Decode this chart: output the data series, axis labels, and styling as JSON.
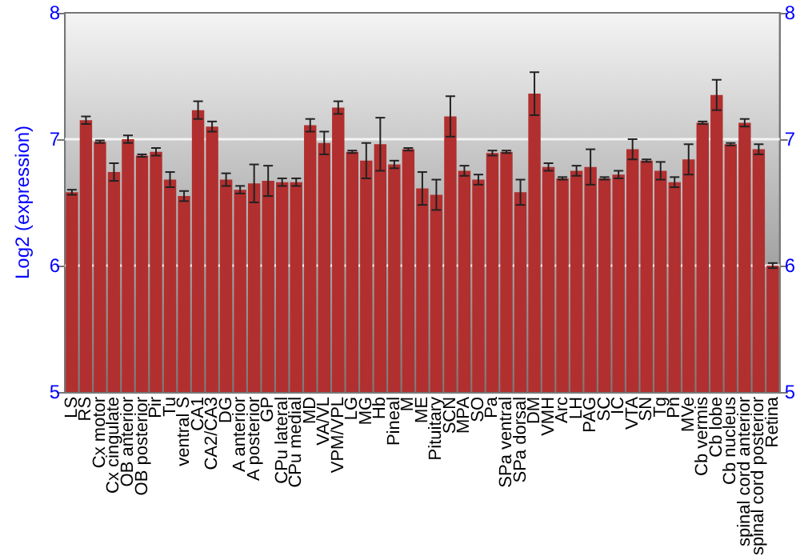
{
  "chart_data": {
    "type": "bar",
    "ylabel": "Log2 (expression)",
    "categories": [
      "LS",
      "RS",
      "Cx motor",
      "Cx cingulate",
      "OB anterior",
      "OB posterior",
      "Pir",
      "Tu",
      "ventral S",
      "CA1",
      "CA2/CA3",
      "DG",
      "A anterior",
      "A posterior",
      "GP",
      "CPu lateral",
      "CPu medial",
      "MD",
      "VA/VL",
      "VPM/VPL",
      "LG",
      "MG",
      "Hb",
      "Pineal",
      "M",
      "ME",
      "Pituitary",
      "SCN",
      "MPA",
      "SO",
      "Pa",
      "SPa ventral",
      "SPa dorsal",
      "DM",
      "VMH",
      "Arc",
      "LH",
      "PAG",
      "SC",
      "IC",
      "VTA",
      "SN",
      "Tg",
      "Pn",
      "MVe",
      "Cb vermis",
      "Cb lobe",
      "Cb nucleus",
      "spinal cord anterior",
      "spinal cord posterior",
      "Retina"
    ],
    "values": [
      6.58,
      7.15,
      6.98,
      6.74,
      7.0,
      6.87,
      6.9,
      6.68,
      6.55,
      7.23,
      7.1,
      6.68,
      6.6,
      6.65,
      6.67,
      6.66,
      6.66,
      7.11,
      6.97,
      7.25,
      6.9,
      6.83,
      6.96,
      6.8,
      6.92,
      6.61,
      6.56,
      7.18,
      6.75,
      6.68,
      6.89,
      6.9,
      6.58,
      7.36,
      6.78,
      6.69,
      6.75,
      6.78,
      6.69,
      6.72,
      6.92,
      6.83,
      6.75,
      6.66,
      6.84,
      7.13,
      7.35,
      6.96,
      7.13,
      6.92,
      6.0
    ],
    "errors": [
      0.02,
      0.03,
      0.01,
      0.07,
      0.03,
      0.01,
      0.03,
      0.06,
      0.04,
      0.07,
      0.04,
      0.05,
      0.03,
      0.15,
      0.12,
      0.03,
      0.03,
      0.05,
      0.09,
      0.05,
      0.01,
      0.14,
      0.21,
      0.03,
      0.01,
      0.13,
      0.12,
      0.16,
      0.04,
      0.04,
      0.02,
      0.01,
      0.1,
      0.17,
      0.03,
      0.01,
      0.04,
      0.14,
      0.01,
      0.03,
      0.08,
      0.01,
      0.07,
      0.04,
      0.12,
      0.01,
      0.12,
      0.01,
      0.03,
      0.04,
      0.02
    ],
    "color": "#b22f2f",
    "ylim": [
      5,
      8
    ],
    "yticks": [
      5,
      6,
      7,
      8
    ],
    "y2lim": [
      5,
      8
    ],
    "y2ticks": [
      5,
      6,
      7,
      8
    ],
    "grid": "y"
  }
}
